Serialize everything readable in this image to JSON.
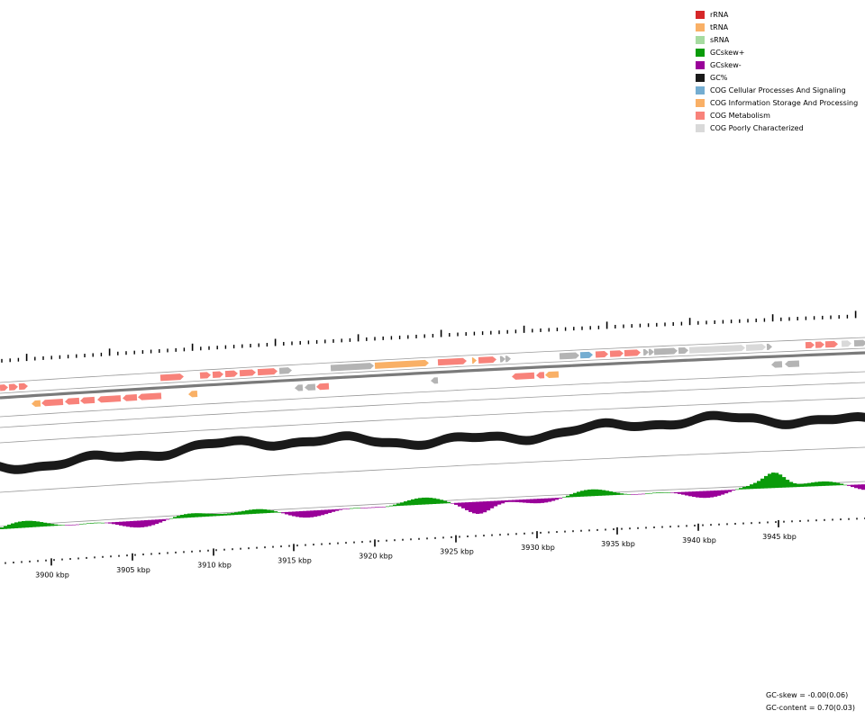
{
  "legend": [
    {
      "label": "rRNA",
      "color": "#d62728"
    },
    {
      "label": "tRNA",
      "color": "#f9b066"
    },
    {
      "label": "sRNA",
      "color": "#a6dba0"
    },
    {
      "label": "GCskew+",
      "color": "#0a9b0a"
    },
    {
      "label": "GCskew-",
      "color": "#990099"
    },
    {
      "label": "GC%",
      "color": "#1a1a1a"
    },
    {
      "label": "COG Cellular Processes And Signaling",
      "color": "#74add1"
    },
    {
      "label": "COG Information Storage And Processing",
      "color": "#f9b066"
    },
    {
      "label": "COG Metabolism",
      "color": "#f8827a"
    },
    {
      "label": "COG Poorly Characterized",
      "color": "#d9d9d9"
    }
  ],
  "axis": {
    "unit": "kbp",
    "tick_labels": [
      "3900 kbp",
      "3905 kbp",
      "3910 kbp",
      "3915 kbp",
      "3920 kbp",
      "3925 kbp",
      "3930 kbp",
      "3935 kbp",
      "3940 kbp",
      "3945 kbp"
    ]
  },
  "stats": {
    "gc_skew": "GC-skew = -0.00(0.06)",
    "gc_content": "GC-content = 0.70(0.03)"
  },
  "colors": {
    "metabolism": "#f8827a",
    "info": "#f9b066",
    "cellular": "#74add1",
    "poorly": "#d9d9d9",
    "unknown": "#b4b4b4",
    "gc": "#1a1a1a",
    "skew_pos": "#0a9b0a",
    "skew_neg": "#990099"
  }
}
